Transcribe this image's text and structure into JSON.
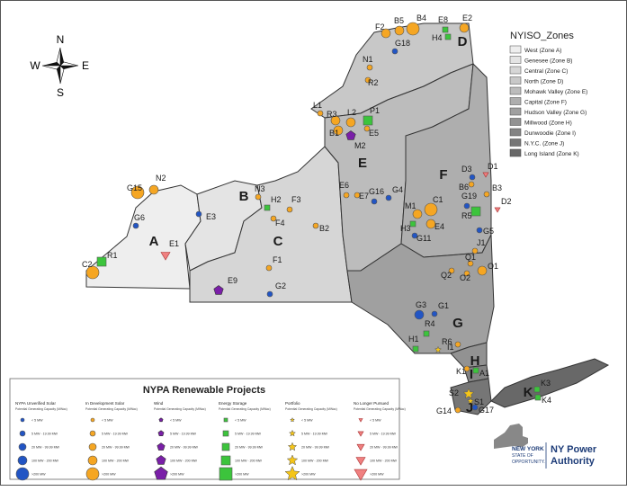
{
  "compass": {
    "n": "N",
    "s": "S",
    "e": "E",
    "w": "W"
  },
  "zones_legend": {
    "title": "NYISO_Zones",
    "items": [
      {
        "label": "West (Zone A)",
        "color": "#eeeeee"
      },
      {
        "label": "Genesee (Zone B)",
        "color": "#e4e4e4"
      },
      {
        "label": "Central (Zone C)",
        "color": "#d6d6d6"
      },
      {
        "label": "North (Zone D)",
        "color": "#c8c8c8"
      },
      {
        "label": "Mohawk Valley (Zone E)",
        "color": "#bcbcbc"
      },
      {
        "label": "Capital (Zone F)",
        "color": "#aeaeae"
      },
      {
        "label": "Hudson Valley (Zone G)",
        "color": "#a0a0a0"
      },
      {
        "label": "Millwood (Zone H)",
        "color": "#929292"
      },
      {
        "label": "Dunwoodie (Zone I)",
        "color": "#848484"
      },
      {
        "label": "N.Y.C. (Zone J)",
        "color": "#767676"
      },
      {
        "label": "Long Island (Zone K)",
        "color": "#686868"
      }
    ]
  },
  "zone_letters": [
    "A",
    "B",
    "C",
    "D",
    "E",
    "F",
    "G",
    "H",
    "I",
    "J",
    "K"
  ],
  "sites": [
    {
      "id": "F2",
      "type": "orange",
      "size": "m"
    },
    {
      "id": "B5",
      "type": "orange",
      "size": "m"
    },
    {
      "id": "B4",
      "type": "orange",
      "size": "l"
    },
    {
      "id": "E8",
      "type": "green",
      "size": "s"
    },
    {
      "id": "E2",
      "type": "orange",
      "size": "m"
    },
    {
      "id": "H4",
      "type": "green",
      "size": "s"
    },
    {
      "id": "G18",
      "type": "blue",
      "size": "s"
    },
    {
      "id": "N1",
      "type": "orange",
      "size": "s"
    },
    {
      "id": "R2",
      "type": "orange",
      "size": "s"
    },
    {
      "id": "L1",
      "type": "orange",
      "size": "s"
    },
    {
      "id": "R3",
      "type": "orange",
      "size": "m"
    },
    {
      "id": "L2",
      "type": "orange",
      "size": "m"
    },
    {
      "id": "P1",
      "type": "green",
      "size": "m"
    },
    {
      "id": "E5",
      "type": "orange",
      "size": "s"
    },
    {
      "id": "B1",
      "type": "orange",
      "size": "m"
    },
    {
      "id": "M2",
      "type": "purple",
      "size": "m"
    },
    {
      "id": "N2",
      "type": "orange",
      "size": "m"
    },
    {
      "id": "G15",
      "type": "orange",
      "size": "l"
    },
    {
      "id": "E3",
      "type": "blue",
      "size": "s"
    },
    {
      "id": "G6",
      "type": "blue",
      "size": "s"
    },
    {
      "id": "N3",
      "type": "orange",
      "size": "s"
    },
    {
      "id": "H2",
      "type": "green",
      "size": "s"
    },
    {
      "id": "F3",
      "type": "orange",
      "size": "s"
    },
    {
      "id": "F4",
      "type": "orange",
      "size": "s"
    },
    {
      "id": "E6",
      "type": "orange",
      "size": "s"
    },
    {
      "id": "E7",
      "type": "orange",
      "size": "s"
    },
    {
      "id": "G16",
      "type": "blue",
      "size": "s"
    },
    {
      "id": "G4",
      "type": "blue",
      "size": "s"
    },
    {
      "id": "B2",
      "type": "orange",
      "size": "s"
    },
    {
      "id": "E1",
      "type": "red",
      "size": "m"
    },
    {
      "id": "R1",
      "type": "green",
      "size": "m"
    },
    {
      "id": "C2",
      "type": "orange",
      "size": "l"
    },
    {
      "id": "F1",
      "type": "orange",
      "size": "s"
    },
    {
      "id": "E9",
      "type": "purple",
      "size": "m"
    },
    {
      "id": "G2",
      "type": "blue",
      "size": "s"
    },
    {
      "id": "D3",
      "type": "blue",
      "size": "s"
    },
    {
      "id": "D1",
      "type": "red",
      "size": "s"
    },
    {
      "id": "B6",
      "type": "orange",
      "size": "s"
    },
    {
      "id": "B3",
      "type": "orange",
      "size": "s"
    },
    {
      "id": "D2",
      "type": "red",
      "size": "s"
    },
    {
      "id": "C1",
      "type": "orange",
      "size": "l"
    },
    {
      "id": "M1",
      "type": "orange",
      "size": "m"
    },
    {
      "id": "E4",
      "type": "orange",
      "size": "m"
    },
    {
      "id": "G19",
      "type": "blue",
      "size": "s"
    },
    {
      "id": "R5",
      "type": "green",
      "size": "m"
    },
    {
      "id": "H3",
      "type": "green",
      "size": "s"
    },
    {
      "id": "G5",
      "type": "blue",
      "size": "s"
    },
    {
      "id": "G11",
      "type": "blue",
      "size": "s"
    },
    {
      "id": "J1",
      "type": "orange",
      "size": "s"
    },
    {
      "id": "Q1",
      "type": "orange",
      "size": "s"
    },
    {
      "id": "Q2",
      "type": "orange",
      "size": "s"
    },
    {
      "id": "O2",
      "type": "orange",
      "size": "s"
    },
    {
      "id": "O1",
      "type": "orange",
      "size": "m"
    },
    {
      "id": "G3",
      "type": "blue",
      "size": "m"
    },
    {
      "id": "G1",
      "type": "blue",
      "size": "s"
    },
    {
      "id": "R4",
      "type": "green",
      "size": "s"
    },
    {
      "id": "R6",
      "type": "star",
      "size": "s"
    },
    {
      "id": "H1",
      "type": "green",
      "size": "s"
    },
    {
      "id": "I1",
      "type": "orange",
      "size": "s"
    },
    {
      "id": "K1",
      "type": "orange",
      "size": "s"
    },
    {
      "id": "A1",
      "type": "green",
      "size": "s"
    },
    {
      "id": "S2",
      "type": "star",
      "size": "m"
    },
    {
      "id": "S1",
      "type": "star",
      "size": "s"
    },
    {
      "id": "G14",
      "type": "orange",
      "size": "s"
    },
    {
      "id": "G17",
      "type": "blue",
      "size": "s"
    },
    {
      "id": "K3",
      "type": "green",
      "size": "s"
    },
    {
      "id": "K4",
      "type": "green",
      "size": "s"
    }
  ],
  "nypa_legend": {
    "title": "NYPA Renewable Projects",
    "columns": [
      {
        "head": "NYPA Unverified Solar",
        "sub": "Potential Generating Capacity (MWac)",
        "symbol": "blue",
        "rows": [
          "< 5 MW",
          "5 MW - 19.99 MW",
          "20 MW - 99.99 MW",
          "100 MW - 200 MW",
          ">200 MW"
        ]
      },
      {
        "head": "In Development Solar",
        "sub": "Potential Generating Capacity (MWac)",
        "symbol": "orange",
        "rows": [
          "< 5 MW",
          "5 MW - 19.99 MW",
          "20 MW - 99.99 MW",
          "100 MW - 200 MW",
          ">200 MW"
        ]
      },
      {
        "head": "Wind",
        "sub": "Potential Generating Capacity (MWac)",
        "symbol": "purple",
        "rows": [
          "< 5 MW",
          "5 MW - 19.99 MW",
          "20 MW - 99.99 MW",
          "100 MW - 200 MW",
          ">200 MW"
        ]
      },
      {
        "head": "Energy Storage",
        "sub": "Potential Generating Capacity (MWac)",
        "symbol": "green",
        "rows": [
          "< 5 MW",
          "5 MW - 19.99 MW",
          "20 MW - 99.99 MW",
          "100 MW - 200 MW",
          ">200 MW"
        ]
      },
      {
        "head": "Portfolio",
        "sub": "Potential Generating Capacity (MWac)",
        "symbol": "star",
        "rows": [
          "< 5 MW",
          "5 MW - 19.99 MW",
          "20 MW - 99.99 MW",
          "100 MW - 200 MW",
          ">200 MW"
        ]
      },
      {
        "head": "No Longer Pursued",
        "sub": "Potential Generating Capacity (MWac)",
        "symbol": "red",
        "rows": [
          "< 5 MW",
          "5 MW - 19.99 MW",
          "20 MW - 99.99 MW",
          "100 MW - 200 MW",
          ">200 MW"
        ]
      }
    ]
  },
  "branding": {
    "line1": "NEW YORK",
    "line2": "STATE OF",
    "line3": "OPPORTUNITY.",
    "org1": "NY Power",
    "org2": "Authority"
  },
  "colors": {
    "blue": "#2255c4",
    "orange": "#f5a623",
    "purple": "#7a1fa8",
    "green": "#3cc43c",
    "red": "#f08080",
    "star": "#f5c518",
    "brand": "#1d3c78"
  }
}
